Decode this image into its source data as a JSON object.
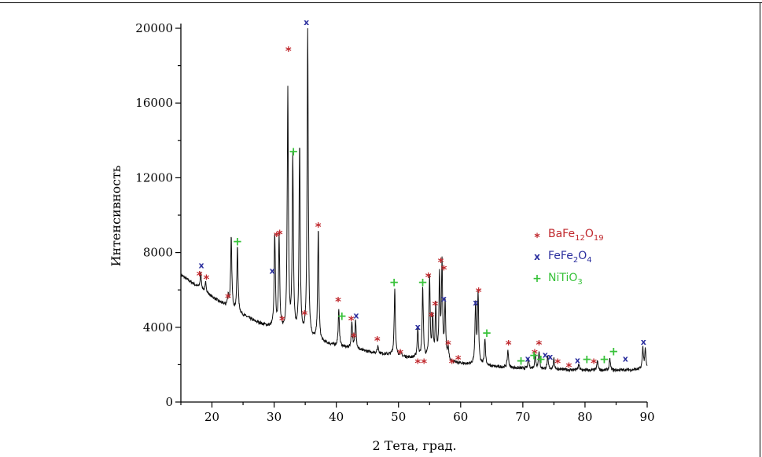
{
  "chart_data": {
    "type": "line",
    "title": "",
    "xlabel": "2 Тета, град.",
    "ylabel": "Интенсивность",
    "xlim": [
      15,
      90
    ],
    "ylim": [
      0,
      20000
    ],
    "x_ticks": [
      20,
      30,
      40,
      50,
      60,
      70,
      80,
      90
    ],
    "y_ticks": [
      0,
      4000,
      8000,
      12000,
      16000,
      20000
    ],
    "grid": false,
    "legend_placement": "right",
    "background": {
      "x": [
        15,
        18,
        21,
        24,
        27,
        30,
        33,
        36,
        40,
        45,
        50,
        55,
        60,
        65,
        70,
        75,
        80,
        85,
        90
      ],
      "y": [
        6800,
        6100,
        5400,
        4800,
        4300,
        3900,
        3600,
        3300,
        3000,
        2700,
        2450,
        2250,
        2050,
        1900,
        1800,
        1750,
        1700,
        1700,
        1750
      ]
    },
    "peaks": [
      {
        "x": 18.2,
        "y": 6900
      },
      {
        "x": 19.0,
        "y": 6400
      },
      {
        "x": 22.6,
        "y": 5700
      },
      {
        "x": 23.1,
        "y": 8800
      },
      {
        "x": 24.1,
        "y": 8300
      },
      {
        "x": 30.1,
        "y": 9000
      },
      {
        "x": 30.8,
        "y": 8800
      },
      {
        "x": 32.2,
        "y": 16600
      },
      {
        "x": 33.0,
        "y": 13000
      },
      {
        "x": 34.1,
        "y": 13600
      },
      {
        "x": 35.4,
        "y": 19800
      },
      {
        "x": 37.1,
        "y": 9200
      },
      {
        "x": 40.4,
        "y": 4900
      },
      {
        "x": 42.5,
        "y": 4300
      },
      {
        "x": 43.1,
        "y": 4400
      },
      {
        "x": 46.7,
        "y": 3000
      },
      {
        "x": 49.4,
        "y": 6100
      },
      {
        "x": 50.3,
        "y": 2700
      },
      {
        "x": 53.1,
        "y": 3900
      },
      {
        "x": 53.9,
        "y": 6100
      },
      {
        "x": 55.0,
        "y": 6600
      },
      {
        "x": 55.5,
        "y": 4400
      },
      {
        "x": 56.0,
        "y": 5000
      },
      {
        "x": 56.6,
        "y": 6600
      },
      {
        "x": 57.0,
        "y": 7200
      },
      {
        "x": 57.5,
        "y": 5200
      },
      {
        "x": 58.0,
        "y": 2800
      },
      {
        "x": 62.4,
        "y": 5200
      },
      {
        "x": 62.8,
        "y": 5700
      },
      {
        "x": 63.9,
        "y": 3400
      },
      {
        "x": 67.6,
        "y": 2800
      },
      {
        "x": 70.9,
        "y": 2300
      },
      {
        "x": 72.0,
        "y": 2500
      },
      {
        "x": 72.6,
        "y": 2700
      },
      {
        "x": 74.0,
        "y": 2400
      },
      {
        "x": 75.0,
        "y": 2300
      },
      {
        "x": 79.0,
        "y": 2000
      },
      {
        "x": 82.0,
        "y": 2200
      },
      {
        "x": 84.0,
        "y": 2300
      },
      {
        "x": 89.3,
        "y": 2900
      },
      {
        "x": 89.7,
        "y": 2800
      }
    ],
    "markers": {
      "BaFe12O19": [
        [
          18.0,
          6900
        ],
        [
          19.1,
          6700
        ],
        [
          22.6,
          5700
        ],
        [
          30.4,
          9000
        ],
        [
          30.9,
          9100
        ],
        [
          31.3,
          4500
        ],
        [
          32.3,
          18900
        ],
        [
          34.9,
          4800
        ],
        [
          37.1,
          9500
        ],
        [
          40.3,
          5500
        ],
        [
          42.4,
          4500
        ],
        [
          42.8,
          3600
        ],
        [
          46.6,
          3400
        ],
        [
          50.3,
          2700
        ],
        [
          53.1,
          2200
        ],
        [
          54.1,
          2200
        ],
        [
          54.8,
          6800
        ],
        [
          55.3,
          4700
        ],
        [
          55.9,
          5300
        ],
        [
          56.8,
          7600
        ],
        [
          57.3,
          7200
        ],
        [
          58.0,
          3200
        ],
        [
          58.6,
          2200
        ],
        [
          59.6,
          2400
        ],
        [
          62.9,
          6000
        ],
        [
          67.7,
          3200
        ],
        [
          71.9,
          2700
        ],
        [
          72.6,
          3200
        ],
        [
          75.6,
          2200
        ],
        [
          77.4,
          2000
        ],
        [
          81.4,
          2200
        ]
      ],
      "FeFe2O4": [
        [
          18.3,
          7300
        ],
        [
          29.7,
          7000
        ],
        [
          35.2,
          20300
        ],
        [
          43.2,
          4600
        ],
        [
          53.1,
          4000
        ],
        [
          57.3,
          5500
        ],
        [
          62.4,
          5300
        ],
        [
          70.8,
          2300
        ],
        [
          73.6,
          2500
        ],
        [
          74.4,
          2400
        ],
        [
          78.8,
          2200
        ],
        [
          86.5,
          2300
        ],
        [
          89.4,
          3200
        ]
      ],
      "NiTiO3": [
        [
          24.1,
          8600
        ],
        [
          33.1,
          13400
        ],
        [
          40.9,
          4600
        ],
        [
          49.3,
          6400
        ],
        [
          53.9,
          6400
        ],
        [
          64.2,
          3700
        ],
        [
          69.7,
          2200
        ],
        [
          71.8,
          2500
        ],
        [
          72.9,
          2300
        ],
        [
          80.3,
          2300
        ],
        [
          83.1,
          2300
        ],
        [
          84.6,
          2700
        ]
      ]
    },
    "series": [
      {
        "name": "BaFe12O19",
        "legend_label": {
          "base": "BaFe",
          "sub1": "12",
          "mid": "O",
          "sub2": "19"
        },
        "marker": "*",
        "color": "#c0282d"
      },
      {
        "name": "FeFe2O4",
        "legend_label": {
          "base": "FeFe",
          "sub1": "2",
          "mid": "O",
          "sub2": "4"
        },
        "marker": "x",
        "color": "#2b2f9e"
      },
      {
        "name": "NiTiO3",
        "legend_label": {
          "base": "NiTiO",
          "sub1": "",
          "mid": "",
          "sub2": "3"
        },
        "marker": "+",
        "color": "#38c23a"
      }
    ]
  }
}
